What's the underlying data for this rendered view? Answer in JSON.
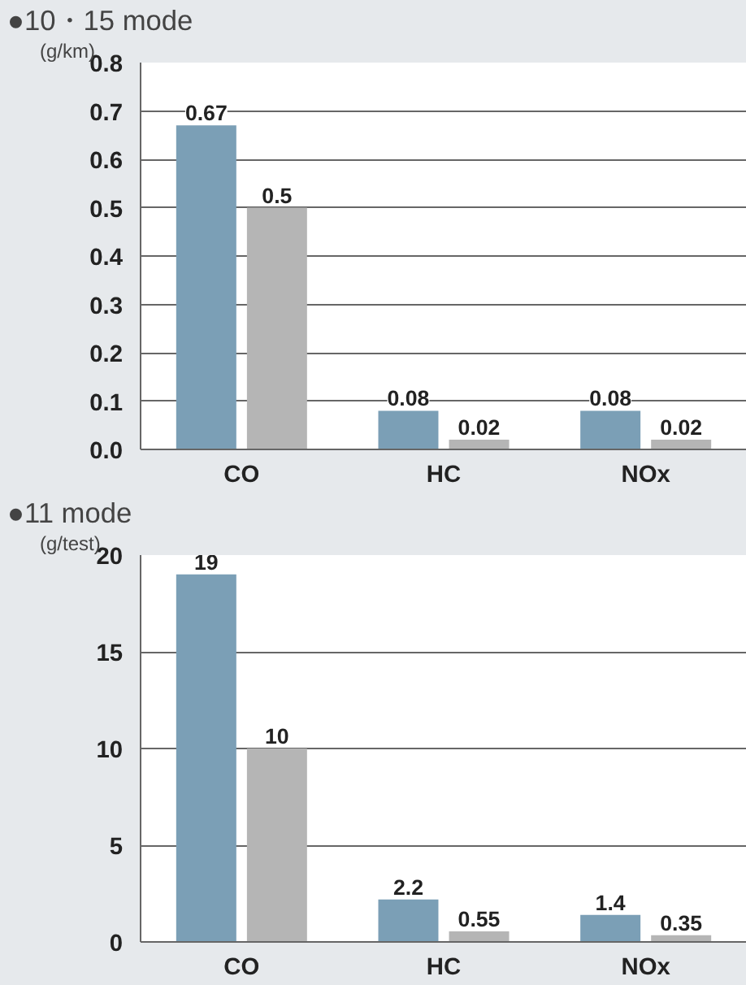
{
  "chart_data": [
    {
      "type": "bar",
      "title": "●10・15 mode",
      "ylabel": "(g/km)",
      "categories": [
        "CO",
        "HC",
        "NOx"
      ],
      "series": [
        {
          "color": "#7b9fb6",
          "values": [
            0.67,
            0.08,
            0.08
          ]
        },
        {
          "color": "#b5b5b5",
          "values": [
            0.5,
            0.02,
            0.02
          ]
        }
      ],
      "ylim": [
        0,
        0.8
      ],
      "yticks": [
        {
          "value": 0,
          "label": "0.0"
        },
        0.1,
        0.2,
        0.3,
        0.4,
        0.5,
        0.6,
        0.7,
        0.8
      ],
      "grid": "y",
      "data_labels": true
    },
    {
      "type": "bar",
      "title": "●11 mode",
      "ylabel": "(g/test)",
      "categories": [
        "CO",
        "HC",
        "NOx"
      ],
      "series": [
        {
          "color": "#7b9fb6",
          "values": [
            19,
            2.2,
            1.4
          ]
        },
        {
          "color": "#b5b5b5",
          "values": [
            10,
            0.55,
            0.35
          ]
        }
      ],
      "ylim": [
        0,
        20
      ],
      "yticks": [
        0,
        5,
        10,
        15,
        20
      ],
      "grid": "y",
      "data_labels": true
    }
  ]
}
